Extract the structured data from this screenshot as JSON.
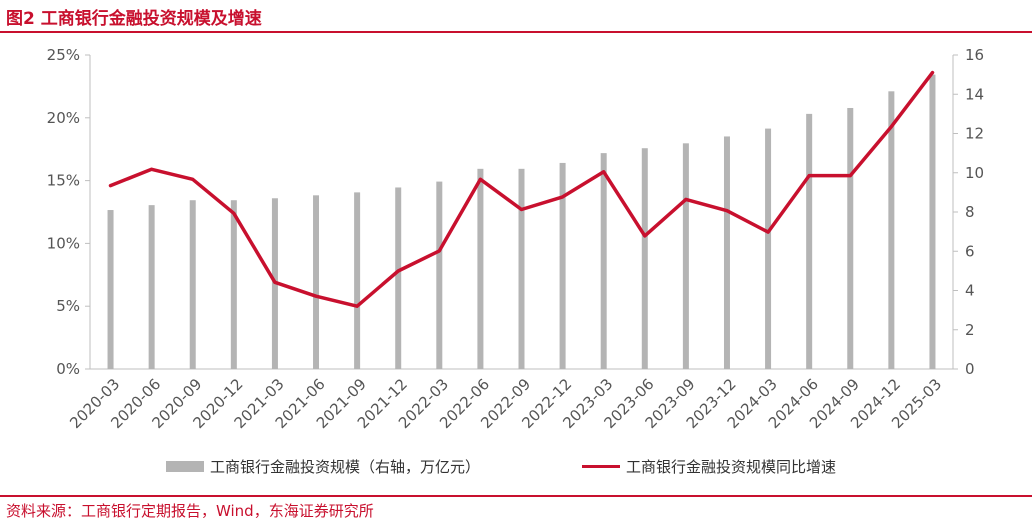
{
  "header": {
    "title": "图2  工商银行金融投资规模及增速"
  },
  "footer": {
    "source": "资料来源：工商银行定期报告，Wind，东海证券研究所"
  },
  "colors": {
    "accent": "#c8102e",
    "bar": "#b4b4b4",
    "axis": "#bfbfbf"
  },
  "chart_data": {
    "type": "bar",
    "categories": [
      "2020-03",
      "2020-06",
      "2020-09",
      "2020-12",
      "2021-03",
      "2021-06",
      "2021-09",
      "2021-12",
      "2022-03",
      "2022-06",
      "2022-09",
      "2022-12",
      "2023-03",
      "2023-06",
      "2023-09",
      "2023-12",
      "2024-03",
      "2024-06",
      "2024-09",
      "2024-12",
      "2025-03"
    ],
    "series": [
      {
        "name": "工商银行金融投资规模（右轴，万亿元）",
        "type": "bar",
        "axis": "right",
        "values": [
          8.1,
          8.35,
          8.6,
          8.6,
          8.7,
          8.85,
          9.0,
          9.25,
          9.55,
          10.2,
          10.2,
          10.5,
          11.0,
          11.25,
          11.5,
          11.85,
          12.25,
          13.0,
          13.3,
          14.15,
          15.0
        ]
      },
      {
        "name": "工商银行金融投资规模同比增速",
        "type": "line",
        "axis": "left",
        "values": [
          14.6,
          15.9,
          15.1,
          12.4,
          6.9,
          5.8,
          5.0,
          7.8,
          9.4,
          15.1,
          12.7,
          13.7,
          15.7,
          10.6,
          13.5,
          12.6,
          10.9,
          15.4,
          15.4,
          19.3,
          23.6
        ]
      }
    ],
    "y_left": {
      "min": 0,
      "max": 25,
      "ticks": [
        "0%",
        "5%",
        "10%",
        "15%",
        "20%",
        "25%"
      ]
    },
    "y_right": {
      "min": 0,
      "max": 16,
      "ticks": [
        "0",
        "2",
        "4",
        "6",
        "8",
        "10",
        "12",
        "14",
        "16"
      ]
    },
    "legend_position": "bottom",
    "grid": false
  }
}
